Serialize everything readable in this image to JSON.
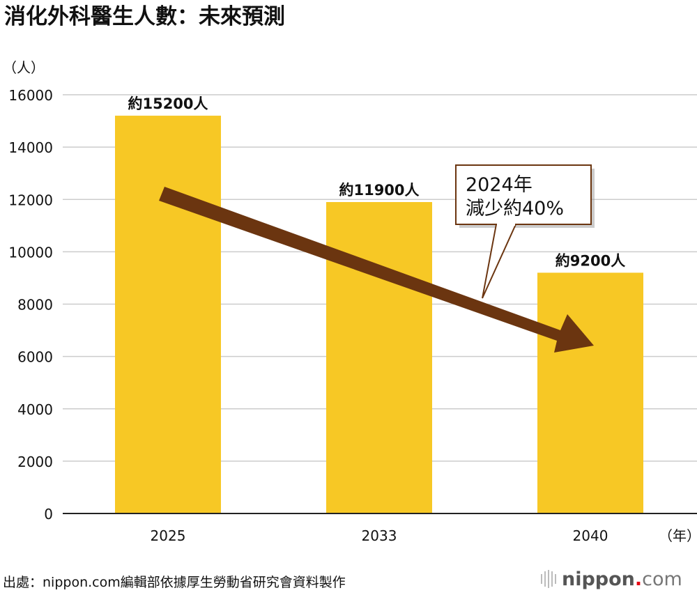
{
  "chart_data": {
    "type": "bar",
    "title": "消化外科醫生人數：未來預測",
    "ylabel": "（人）",
    "xlabel": "（年）",
    "categories": [
      "2025",
      "2033",
      "2040"
    ],
    "values": [
      15200,
      11900,
      9200
    ],
    "data_labels": [
      "約15200人",
      "約11900人",
      "約9200人"
    ],
    "ylim": [
      0,
      16000
    ],
    "yticks": [
      0,
      2000,
      4000,
      6000,
      8000,
      10000,
      12000,
      14000,
      16000
    ],
    "grid": true,
    "bar_color": "#f7c825",
    "arrow_color": "#6b3510",
    "annotation": {
      "line1": "2024年",
      "line2": "減少約40%"
    }
  },
  "footer": {
    "source": "出處：nippon.com編輯部依據厚生勞動省研究會資料製作",
    "logo_main": "nippon",
    "logo_dot": ".",
    "logo_suffix": "com"
  }
}
